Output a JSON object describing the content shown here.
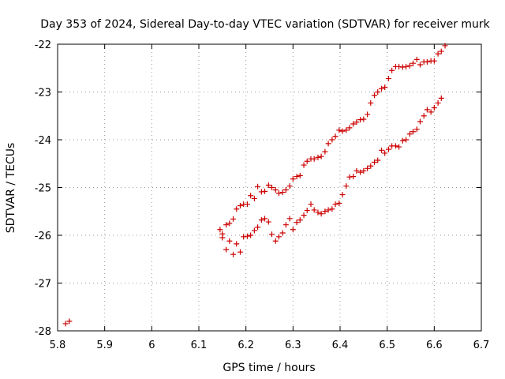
{
  "chart_data": {
    "type": "scatter",
    "title": "Day 353 of 2024, Sidereal Day-to-day VTEC variation (SDTVAR) for receiver murk",
    "xlabel": "GPS time / hours",
    "ylabel": "SDTVAR / TECUs",
    "xlim": [
      5.8,
      6.7
    ],
    "ylim": [
      -28,
      -22
    ],
    "xticks": [
      5.8,
      5.9,
      6.0,
      6.1,
      6.2,
      6.3,
      6.4,
      6.5,
      6.6,
      6.7
    ],
    "xtick_labels": [
      "5.8",
      "5.9",
      "6",
      "6.1",
      "6.2",
      "6.3",
      "6.4",
      "6.5",
      "6.6",
      "6.7"
    ],
    "yticks": [
      -28,
      -27,
      -26,
      -25,
      -24,
      -23,
      -22
    ],
    "ytick_labels": [
      "-28",
      "-27",
      "-26",
      "-25",
      "-24",
      "-23",
      "-22"
    ],
    "grid": true,
    "marker": "+",
    "color": "#cc0000",
    "series": [
      {
        "name": "series-upper",
        "points": [
          [
            6.145,
            -25.88
          ],
          [
            6.15,
            -25.97
          ],
          [
            6.158,
            -25.78
          ],
          [
            6.165,
            -25.75
          ],
          [
            6.173,
            -25.66
          ],
          [
            6.18,
            -25.45
          ],
          [
            6.188,
            -25.38
          ],
          [
            6.195,
            -25.35
          ],
          [
            6.203,
            -25.35
          ],
          [
            6.21,
            -25.17
          ],
          [
            6.218,
            -25.23
          ],
          [
            6.225,
            -24.98
          ],
          [
            6.233,
            -25.09
          ],
          [
            6.24,
            -25.08
          ],
          [
            6.248,
            -24.95
          ],
          [
            6.255,
            -25.0
          ],
          [
            6.263,
            -25.05
          ],
          [
            6.27,
            -25.12
          ],
          [
            6.278,
            -25.1
          ],
          [
            6.285,
            -25.05
          ],
          [
            6.293,
            -24.97
          ],
          [
            6.3,
            -24.82
          ],
          [
            6.308,
            -24.77
          ],
          [
            6.315,
            -24.75
          ],
          [
            6.323,
            -24.53
          ],
          [
            6.33,
            -24.45
          ],
          [
            6.338,
            -24.4
          ],
          [
            6.345,
            -24.4
          ],
          [
            6.353,
            -24.37
          ],
          [
            6.36,
            -24.35
          ],
          [
            6.368,
            -24.25
          ],
          [
            6.375,
            -24.08
          ],
          [
            6.383,
            -24.0
          ],
          [
            6.39,
            -23.93
          ],
          [
            6.398,
            -23.8
          ],
          [
            6.405,
            -23.82
          ],
          [
            6.413,
            -23.8
          ],
          [
            6.42,
            -23.75
          ],
          [
            6.428,
            -23.67
          ],
          [
            6.435,
            -23.63
          ],
          [
            6.443,
            -23.58
          ],
          [
            6.45,
            -23.57
          ],
          [
            6.458,
            -23.47
          ],
          [
            6.465,
            -23.23
          ],
          [
            6.473,
            -23.07
          ],
          [
            6.48,
            -23.0
          ],
          [
            6.488,
            -22.93
          ],
          [
            6.495,
            -22.9
          ],
          [
            6.503,
            -22.72
          ],
          [
            6.51,
            -22.55
          ],
          [
            6.518,
            -22.47
          ],
          [
            6.525,
            -22.47
          ],
          [
            6.533,
            -22.48
          ],
          [
            6.54,
            -22.47
          ],
          [
            6.548,
            -22.45
          ],
          [
            6.555,
            -22.4
          ],
          [
            6.563,
            -22.32
          ],
          [
            6.57,
            -22.43
          ],
          [
            6.578,
            -22.37
          ],
          [
            6.585,
            -22.37
          ],
          [
            6.593,
            -22.35
          ],
          [
            6.6,
            -22.35
          ],
          [
            6.608,
            -22.2
          ],
          [
            6.615,
            -22.15
          ],
          [
            6.623,
            -22.03
          ]
        ]
      },
      {
        "name": "series-lower",
        "points": [
          [
            5.817,
            -27.85
          ],
          [
            5.825,
            -27.8
          ],
          [
            6.15,
            -26.05
          ],
          [
            6.158,
            -26.3
          ],
          [
            6.165,
            -26.12
          ],
          [
            6.173,
            -26.4
          ],
          [
            6.18,
            -26.18
          ],
          [
            6.188,
            -26.35
          ],
          [
            6.195,
            -26.03
          ],
          [
            6.203,
            -26.02
          ],
          [
            6.21,
            -26.0
          ],
          [
            6.218,
            -25.9
          ],
          [
            6.225,
            -25.83
          ],
          [
            6.233,
            -25.68
          ],
          [
            6.24,
            -25.65
          ],
          [
            6.248,
            -25.72
          ],
          [
            6.255,
            -25.98
          ],
          [
            6.263,
            -26.12
          ],
          [
            6.27,
            -26.03
          ],
          [
            6.278,
            -25.95
          ],
          [
            6.285,
            -25.78
          ],
          [
            6.293,
            -25.65
          ],
          [
            6.3,
            -25.88
          ],
          [
            6.308,
            -25.73
          ],
          [
            6.315,
            -25.68
          ],
          [
            6.323,
            -25.58
          ],
          [
            6.33,
            -25.48
          ],
          [
            6.338,
            -25.35
          ],
          [
            6.345,
            -25.47
          ],
          [
            6.353,
            -25.52
          ],
          [
            6.36,
            -25.55
          ],
          [
            6.368,
            -25.5
          ],
          [
            6.375,
            -25.47
          ],
          [
            6.383,
            -25.45
          ],
          [
            6.39,
            -25.35
          ],
          [
            6.398,
            -25.33
          ],
          [
            6.405,
            -25.15
          ],
          [
            6.413,
            -24.97
          ],
          [
            6.42,
            -24.78
          ],
          [
            6.428,
            -24.77
          ],
          [
            6.435,
            -24.65
          ],
          [
            6.443,
            -24.68
          ],
          [
            6.45,
            -24.65
          ],
          [
            6.458,
            -24.6
          ],
          [
            6.465,
            -24.55
          ],
          [
            6.473,
            -24.47
          ],
          [
            6.48,
            -24.43
          ],
          [
            6.488,
            -24.22
          ],
          [
            6.495,
            -24.28
          ],
          [
            6.503,
            -24.2
          ],
          [
            6.51,
            -24.13
          ],
          [
            6.518,
            -24.13
          ],
          [
            6.525,
            -24.15
          ],
          [
            6.533,
            -24.02
          ],
          [
            6.54,
            -24.0
          ],
          [
            6.548,
            -23.88
          ],
          [
            6.555,
            -23.83
          ],
          [
            6.563,
            -23.78
          ],
          [
            6.57,
            -23.62
          ],
          [
            6.578,
            -23.5
          ],
          [
            6.585,
            -23.37
          ],
          [
            6.593,
            -23.42
          ],
          [
            6.6,
            -23.33
          ],
          [
            6.608,
            -23.23
          ],
          [
            6.615,
            -23.13
          ]
        ]
      }
    ]
  }
}
